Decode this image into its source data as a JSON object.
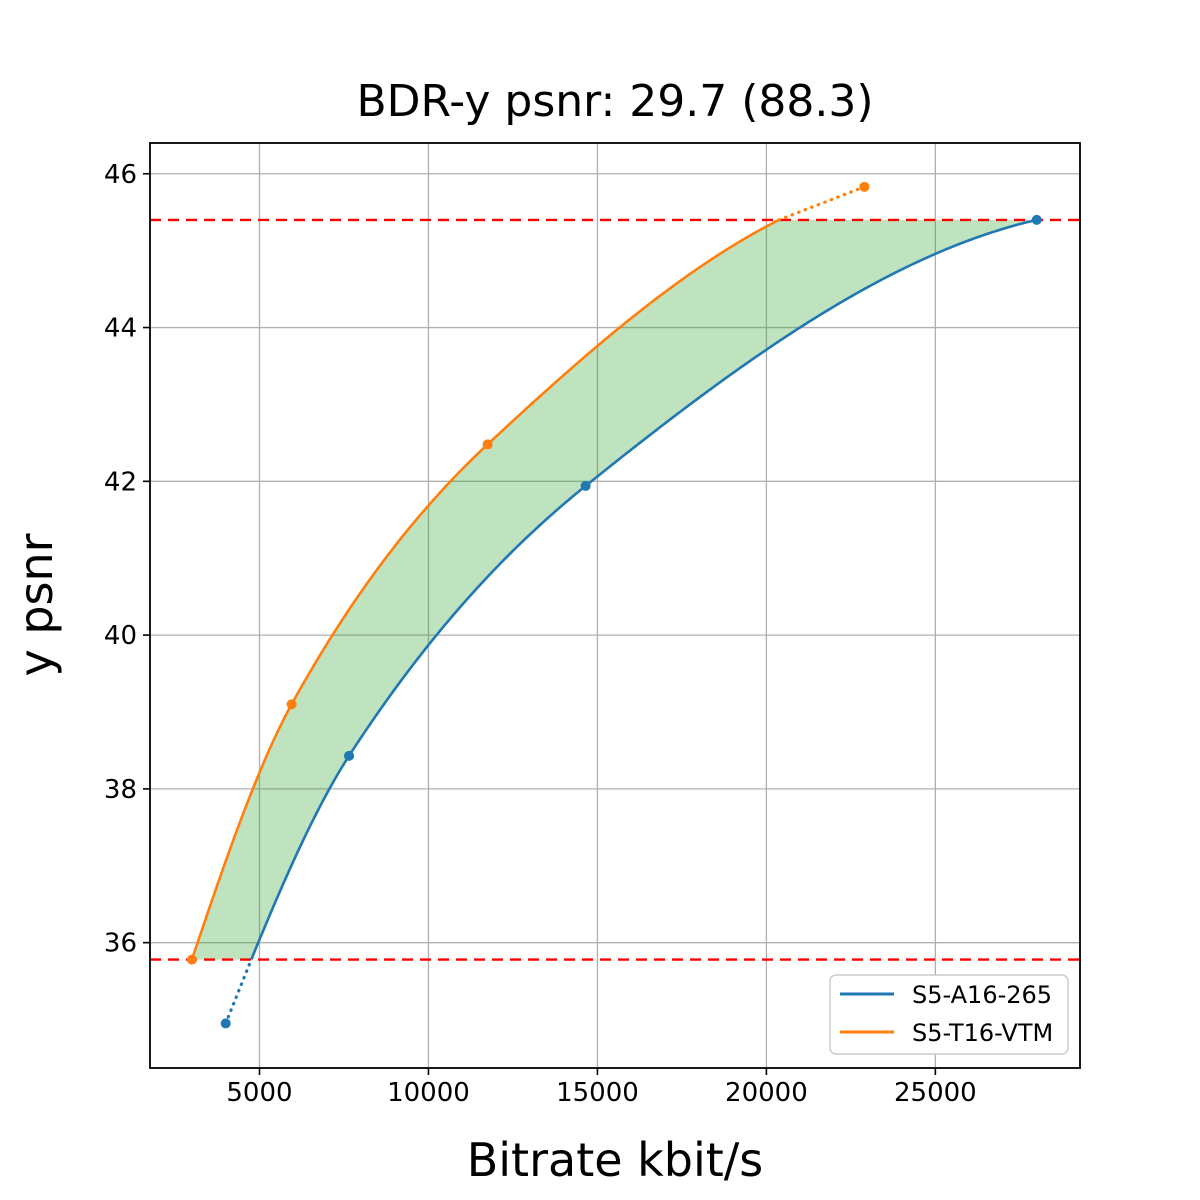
{
  "chart_data": {
    "type": "line",
    "title": "BDR-y psnr: 29.7 (88.3)",
    "xlabel": "Bitrate kbit/s",
    "ylabel": "y psnr",
    "xlim": [
      1760,
      29280
    ],
    "ylim": [
      34.37,
      46.4
    ],
    "xticks": [
      5000,
      10000,
      15000,
      20000,
      25000
    ],
    "yticks": [
      36,
      38,
      40,
      42,
      44,
      46
    ],
    "grid": true,
    "grid_color": "#b0b0b0",
    "legend_position": "lower right",
    "series": [
      {
        "name": "S5-A16-265",
        "color": "#1f77b4",
        "marker": "circle",
        "points": [
          [
            4000,
            34.95
          ],
          [
            7650,
            38.43
          ],
          [
            14650,
            41.94
          ],
          [
            28000,
            45.4
          ]
        ]
      },
      {
        "name": "S5-T16-VTM",
        "color": "#ff7f0e",
        "marker": "circle",
        "points": [
          [
            3000,
            35.78
          ],
          [
            5950,
            39.1
          ],
          [
            11750,
            42.48
          ],
          [
            22900,
            45.83
          ]
        ]
      }
    ],
    "overlap_band": {
      "y_min": 35.78,
      "y_max": 45.4,
      "line_color": "#ff0000",
      "line_style": "dashed"
    },
    "fill_between": {
      "color": "#2ca02c",
      "alpha": 0.3
    }
  }
}
